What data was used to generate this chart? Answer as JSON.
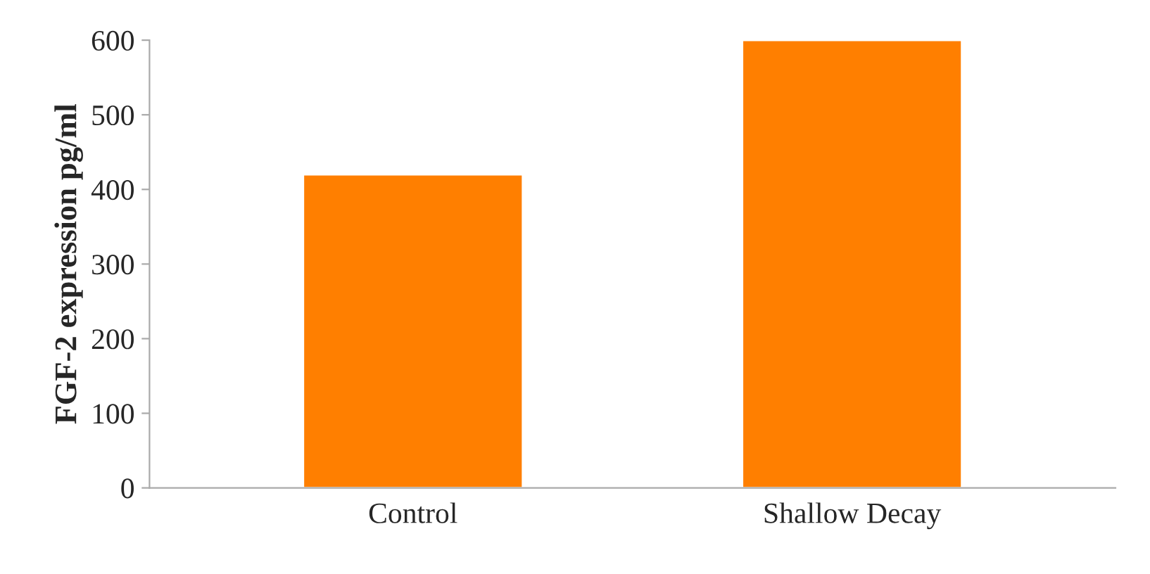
{
  "chart_data": {
    "type": "bar",
    "ylabel": "FGF-2 expression pg/ml",
    "categories": [
      "Control",
      "Shallow Decay"
    ],
    "values": [
      420,
      600
    ],
    "color": "#ff7f00",
    "ylim": [
      0,
      600
    ],
    "yticks": [
      0,
      100,
      200,
      300,
      400,
      500,
      600
    ],
    "grid": false
  }
}
